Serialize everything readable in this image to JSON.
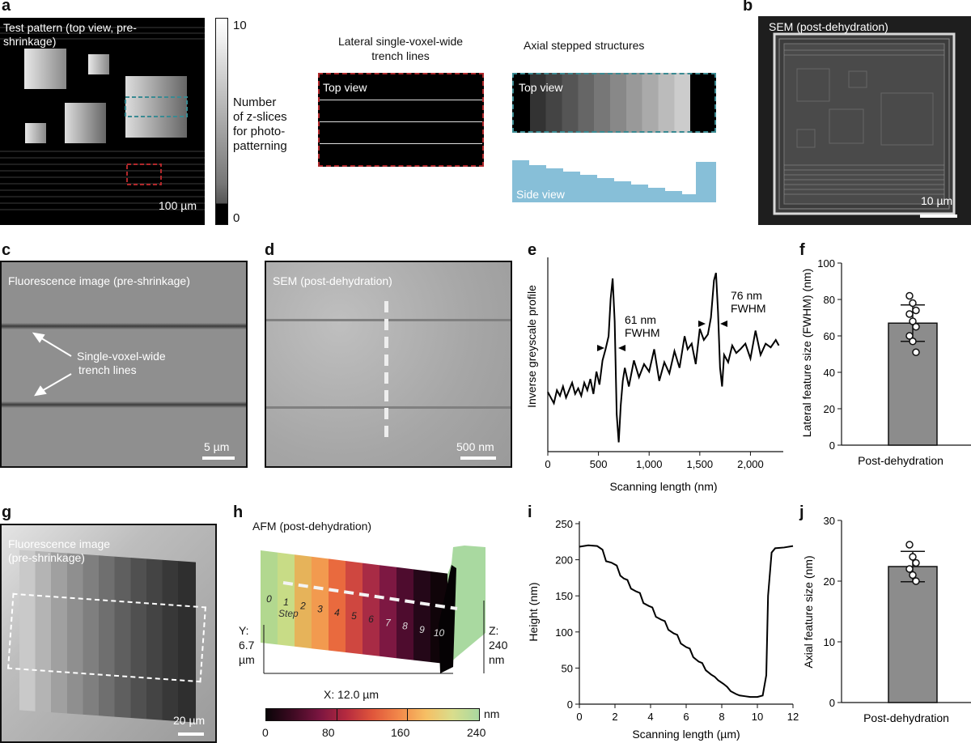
{
  "panel_letters": [
    "a",
    "b",
    "c",
    "d",
    "e",
    "f",
    "g",
    "h",
    "i",
    "j"
  ],
  "a": {
    "title": "Test pattern (top view, pre-shrinkage)",
    "scale": "100 µm",
    "colorbar_max": "10",
    "colorbar_min": "0",
    "colorbar_label": [
      "Number",
      "of z-slices",
      "for photo-",
      "patterning"
    ],
    "lateral_title": [
      "Lateral single-voxel-wide",
      "trench lines"
    ],
    "lateral_top_view": "Top view",
    "axial_title": "Axial stepped structures",
    "axial_top_view": "Top view",
    "axial_side_view": "Side view",
    "colors": {
      "teal": "#3a8a92",
      "red": "#b0282b",
      "side": "#87bfd8"
    }
  },
  "b": {
    "title": "SEM (post-dehydration)",
    "scale": "10 µm"
  },
  "c": {
    "title": "Fluorescence image (pre-shrinkage)",
    "annotation": [
      "Single-voxel-wide",
      "trench lines"
    ],
    "scale": "5 µm"
  },
  "d": {
    "title": "SEM (post-dehydration)",
    "scale": "500 nm"
  },
  "e": {
    "annot1": [
      "61 nm",
      "FWHM"
    ],
    "annot2": [
      "76 nm",
      "FWHM"
    ],
    "chart_data": {
      "type": "line",
      "xlabel": "Scanning length (nm)",
      "ylabel": "Inverse greyscale profile",
      "xlim": [
        0,
        2300
      ],
      "xticks": [
        "0",
        "500",
        "1,000",
        "1,500",
        "2,000"
      ],
      "xtick_values": [
        0,
        500,
        1000,
        1500,
        2000
      ],
      "ylim": [
        0,
        1
      ],
      "x": [
        0,
        30,
        60,
        90,
        120,
        150,
        180,
        210,
        240,
        270,
        300,
        330,
        360,
        390,
        420,
        450,
        480,
        510,
        540,
        570,
        600,
        620,
        640,
        660,
        680,
        700,
        720,
        740,
        760,
        800,
        850,
        900,
        950,
        1000,
        1050,
        1100,
        1150,
        1200,
        1250,
        1300,
        1350,
        1380,
        1420,
        1460,
        1500,
        1540,
        1580,
        1610,
        1640,
        1660,
        1680,
        1700,
        1720,
        1740,
        1780,
        1820,
        1860,
        1900,
        1950,
        2000,
        2050,
        2100,
        2150,
        2200,
        2250,
        2280
      ],
      "y": [
        0.32,
        0.29,
        0.26,
        0.33,
        0.3,
        0.35,
        0.29,
        0.33,
        0.37,
        0.31,
        0.34,
        0.3,
        0.37,
        0.33,
        0.39,
        0.31,
        0.43,
        0.36,
        0.49,
        0.55,
        0.62,
        0.82,
        0.93,
        0.7,
        0.2,
        0.05,
        0.25,
        0.38,
        0.45,
        0.35,
        0.49,
        0.4,
        0.47,
        0.43,
        0.55,
        0.38,
        0.48,
        0.42,
        0.54,
        0.45,
        0.62,
        0.55,
        0.58,
        0.47,
        0.66,
        0.6,
        0.63,
        0.72,
        0.92,
        0.96,
        0.75,
        0.45,
        0.35,
        0.52,
        0.48,
        0.57,
        0.53,
        0.55,
        0.58,
        0.5,
        0.65,
        0.52,
        0.58,
        0.56,
        0.6,
        0.57
      ]
    }
  },
  "f": {
    "chart_data": {
      "type": "bar",
      "categories": [
        "Post-dehydration"
      ],
      "values": [
        67
      ],
      "error": [
        10
      ],
      "points": [
        82,
        78,
        74,
        72,
        68,
        65,
        60,
        57,
        51
      ],
      "ylabel": "Lateral feature size (FWHM) (nm)",
      "ylim": [
        0,
        100
      ],
      "yticks": [
        "0",
        "20",
        "40",
        "60",
        "80",
        "100"
      ],
      "ytick_values": [
        0,
        20,
        40,
        60,
        80,
        100
      ]
    }
  },
  "g": {
    "title": [
      "Fluorescence image",
      "(pre-shrinkage)"
    ],
    "scale": "20 µm"
  },
  "h": {
    "title": "AFM (post-dehydration)",
    "steps": [
      "0",
      "1",
      "2",
      "3",
      "4",
      "5",
      "6",
      "7",
      "8",
      "9",
      "10"
    ],
    "step_label": "Step",
    "y_dim": [
      "Y:",
      "6.7",
      "µm"
    ],
    "z_dim": [
      "Z:",
      "240",
      "nm"
    ],
    "x_dim": "X: 12.0 µm",
    "colorbar_unit": "nm",
    "colorbar_ticks": [
      "0",
      "80",
      "160",
      "240"
    ],
    "colors": [
      "#0a0508",
      "#3e0a22",
      "#7a1540",
      "#b52a3f",
      "#e0563b",
      "#f2894a",
      "#f6bf64",
      "#d9dd8c",
      "#a9d9a0"
    ]
  },
  "i": {
    "chart_data": {
      "type": "line",
      "xlabel": "Scanning length (µm)",
      "ylabel": "Height (nm)",
      "xlim": [
        0,
        12
      ],
      "xticks": [
        "0",
        "2",
        "4",
        "6",
        "8",
        "10",
        "12"
      ],
      "xtick_values": [
        0,
        2,
        4,
        6,
        8,
        10,
        12
      ],
      "ylim": [
        0,
        250
      ],
      "yticks": [
        "0",
        "50",
        "100",
        "150",
        "200",
        "250"
      ],
      "ytick_values": [
        0,
        50,
        100,
        150,
        200,
        250
      ],
      "x": [
        0,
        0.5,
        1.0,
        1.3,
        1.5,
        1.8,
        2.1,
        2.3,
        2.5,
        2.7,
        2.9,
        3.2,
        3.4,
        3.6,
        3.9,
        4.1,
        4.3,
        4.6,
        4.8,
        5.0,
        5.3,
        5.5,
        5.7,
        6.0,
        6.2,
        6.4,
        6.7,
        6.9,
        7.1,
        7.4,
        7.6,
        7.8,
        8.1,
        8.3,
        8.5,
        8.8,
        9.0,
        9.3,
        9.6,
        9.8,
        10.0,
        10.3,
        10.5,
        10.6,
        10.8,
        11.0,
        11.5,
        12.0
      ],
      "y": [
        218,
        220,
        219,
        214,
        198,
        196,
        192,
        178,
        174,
        172,
        160,
        156,
        154,
        140,
        136,
        134,
        121,
        117,
        115,
        103,
        98,
        96,
        84,
        79,
        77,
        65,
        59,
        57,
        47,
        41,
        38,
        33,
        28,
        24,
        18,
        14,
        12,
        11,
        10,
        10,
        10,
        12,
        40,
        150,
        210,
        216,
        217,
        219
      ]
    }
  },
  "j": {
    "chart_data": {
      "type": "bar",
      "categories": [
        "Post-dehydration"
      ],
      "values": [
        22.4
      ],
      "error": [
        2.5
      ],
      "points": [
        26,
        24,
        23,
        22,
        21,
        20
      ],
      "ylabel": "Axial feature size (nm)",
      "ylim": [
        0,
        30
      ],
      "yticks": [
        "0",
        "10",
        "20",
        "30"
      ],
      "ytick_values": [
        0,
        10,
        20,
        30
      ]
    }
  }
}
